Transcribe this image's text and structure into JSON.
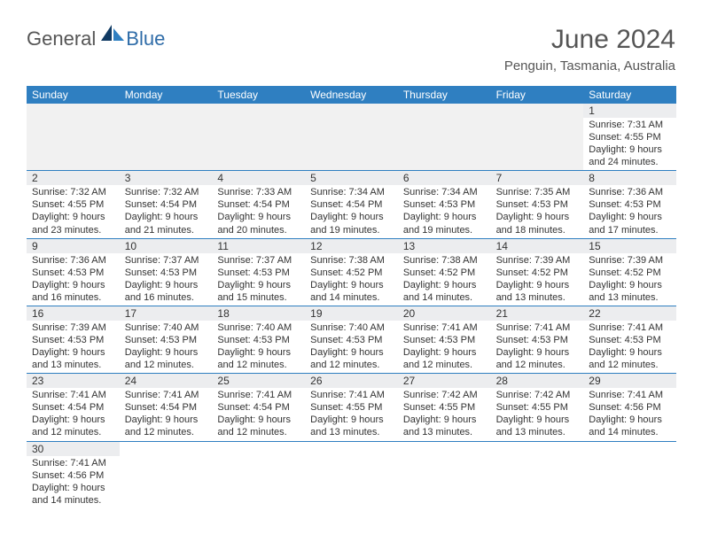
{
  "logo": {
    "text1": "General",
    "text2": "Blue"
  },
  "title": "June 2024",
  "subtitle": "Penguin, Tasmania, Australia",
  "colors": {
    "header_bg": "#2f7fc1",
    "header_text": "#ffffff",
    "daynum_bg": "#ecedef",
    "border": "#2f7fc1",
    "logo_blue": "#2f6ca8"
  },
  "day_headers": [
    "Sunday",
    "Monday",
    "Tuesday",
    "Wednesday",
    "Thursday",
    "Friday",
    "Saturday"
  ],
  "weeks": [
    [
      {
        "empty": true
      },
      {
        "empty": true
      },
      {
        "empty": true
      },
      {
        "empty": true
      },
      {
        "empty": true
      },
      {
        "empty": true
      },
      {
        "day": "1",
        "sunrise": "Sunrise: 7:31 AM",
        "sunset": "Sunset: 4:55 PM",
        "daylight1": "Daylight: 9 hours",
        "daylight2": "and 24 minutes."
      }
    ],
    [
      {
        "day": "2",
        "sunrise": "Sunrise: 7:32 AM",
        "sunset": "Sunset: 4:55 PM",
        "daylight1": "Daylight: 9 hours",
        "daylight2": "and 23 minutes."
      },
      {
        "day": "3",
        "sunrise": "Sunrise: 7:32 AM",
        "sunset": "Sunset: 4:54 PM",
        "daylight1": "Daylight: 9 hours",
        "daylight2": "and 21 minutes."
      },
      {
        "day": "4",
        "sunrise": "Sunrise: 7:33 AM",
        "sunset": "Sunset: 4:54 PM",
        "daylight1": "Daylight: 9 hours",
        "daylight2": "and 20 minutes."
      },
      {
        "day": "5",
        "sunrise": "Sunrise: 7:34 AM",
        "sunset": "Sunset: 4:54 PM",
        "daylight1": "Daylight: 9 hours",
        "daylight2": "and 19 minutes."
      },
      {
        "day": "6",
        "sunrise": "Sunrise: 7:34 AM",
        "sunset": "Sunset: 4:53 PM",
        "daylight1": "Daylight: 9 hours",
        "daylight2": "and 19 minutes."
      },
      {
        "day": "7",
        "sunrise": "Sunrise: 7:35 AM",
        "sunset": "Sunset: 4:53 PM",
        "daylight1": "Daylight: 9 hours",
        "daylight2": "and 18 minutes."
      },
      {
        "day": "8",
        "sunrise": "Sunrise: 7:36 AM",
        "sunset": "Sunset: 4:53 PM",
        "daylight1": "Daylight: 9 hours",
        "daylight2": "and 17 minutes."
      }
    ],
    [
      {
        "day": "9",
        "sunrise": "Sunrise: 7:36 AM",
        "sunset": "Sunset: 4:53 PM",
        "daylight1": "Daylight: 9 hours",
        "daylight2": "and 16 minutes."
      },
      {
        "day": "10",
        "sunrise": "Sunrise: 7:37 AM",
        "sunset": "Sunset: 4:53 PM",
        "daylight1": "Daylight: 9 hours",
        "daylight2": "and 16 minutes."
      },
      {
        "day": "11",
        "sunrise": "Sunrise: 7:37 AM",
        "sunset": "Sunset: 4:53 PM",
        "daylight1": "Daylight: 9 hours",
        "daylight2": "and 15 minutes."
      },
      {
        "day": "12",
        "sunrise": "Sunrise: 7:38 AM",
        "sunset": "Sunset: 4:52 PM",
        "daylight1": "Daylight: 9 hours",
        "daylight2": "and 14 minutes."
      },
      {
        "day": "13",
        "sunrise": "Sunrise: 7:38 AM",
        "sunset": "Sunset: 4:52 PM",
        "daylight1": "Daylight: 9 hours",
        "daylight2": "and 14 minutes."
      },
      {
        "day": "14",
        "sunrise": "Sunrise: 7:39 AM",
        "sunset": "Sunset: 4:52 PM",
        "daylight1": "Daylight: 9 hours",
        "daylight2": "and 13 minutes."
      },
      {
        "day": "15",
        "sunrise": "Sunrise: 7:39 AM",
        "sunset": "Sunset: 4:52 PM",
        "daylight1": "Daylight: 9 hours",
        "daylight2": "and 13 minutes."
      }
    ],
    [
      {
        "day": "16",
        "sunrise": "Sunrise: 7:39 AM",
        "sunset": "Sunset: 4:53 PM",
        "daylight1": "Daylight: 9 hours",
        "daylight2": "and 13 minutes."
      },
      {
        "day": "17",
        "sunrise": "Sunrise: 7:40 AM",
        "sunset": "Sunset: 4:53 PM",
        "daylight1": "Daylight: 9 hours",
        "daylight2": "and 12 minutes."
      },
      {
        "day": "18",
        "sunrise": "Sunrise: 7:40 AM",
        "sunset": "Sunset: 4:53 PM",
        "daylight1": "Daylight: 9 hours",
        "daylight2": "and 12 minutes."
      },
      {
        "day": "19",
        "sunrise": "Sunrise: 7:40 AM",
        "sunset": "Sunset: 4:53 PM",
        "daylight1": "Daylight: 9 hours",
        "daylight2": "and 12 minutes."
      },
      {
        "day": "20",
        "sunrise": "Sunrise: 7:41 AM",
        "sunset": "Sunset: 4:53 PM",
        "daylight1": "Daylight: 9 hours",
        "daylight2": "and 12 minutes."
      },
      {
        "day": "21",
        "sunrise": "Sunrise: 7:41 AM",
        "sunset": "Sunset: 4:53 PM",
        "daylight1": "Daylight: 9 hours",
        "daylight2": "and 12 minutes."
      },
      {
        "day": "22",
        "sunrise": "Sunrise: 7:41 AM",
        "sunset": "Sunset: 4:53 PM",
        "daylight1": "Daylight: 9 hours",
        "daylight2": "and 12 minutes."
      }
    ],
    [
      {
        "day": "23",
        "sunrise": "Sunrise: 7:41 AM",
        "sunset": "Sunset: 4:54 PM",
        "daylight1": "Daylight: 9 hours",
        "daylight2": "and 12 minutes."
      },
      {
        "day": "24",
        "sunrise": "Sunrise: 7:41 AM",
        "sunset": "Sunset: 4:54 PM",
        "daylight1": "Daylight: 9 hours",
        "daylight2": "and 12 minutes."
      },
      {
        "day": "25",
        "sunrise": "Sunrise: 7:41 AM",
        "sunset": "Sunset: 4:54 PM",
        "daylight1": "Daylight: 9 hours",
        "daylight2": "and 12 minutes."
      },
      {
        "day": "26",
        "sunrise": "Sunrise: 7:41 AM",
        "sunset": "Sunset: 4:55 PM",
        "daylight1": "Daylight: 9 hours",
        "daylight2": "and 13 minutes."
      },
      {
        "day": "27",
        "sunrise": "Sunrise: 7:42 AM",
        "sunset": "Sunset: 4:55 PM",
        "daylight1": "Daylight: 9 hours",
        "daylight2": "and 13 minutes."
      },
      {
        "day": "28",
        "sunrise": "Sunrise: 7:42 AM",
        "sunset": "Sunset: 4:55 PM",
        "daylight1": "Daylight: 9 hours",
        "daylight2": "and 13 minutes."
      },
      {
        "day": "29",
        "sunrise": "Sunrise: 7:41 AM",
        "sunset": "Sunset: 4:56 PM",
        "daylight1": "Daylight: 9 hours",
        "daylight2": "and 14 minutes."
      }
    ],
    [
      {
        "day": "30",
        "sunrise": "Sunrise: 7:41 AM",
        "sunset": "Sunset: 4:56 PM",
        "daylight1": "Daylight: 9 hours",
        "daylight2": "and 14 minutes."
      },
      {
        "blank": true
      },
      {
        "blank": true
      },
      {
        "blank": true
      },
      {
        "blank": true
      },
      {
        "blank": true
      },
      {
        "blank": true
      }
    ]
  ]
}
